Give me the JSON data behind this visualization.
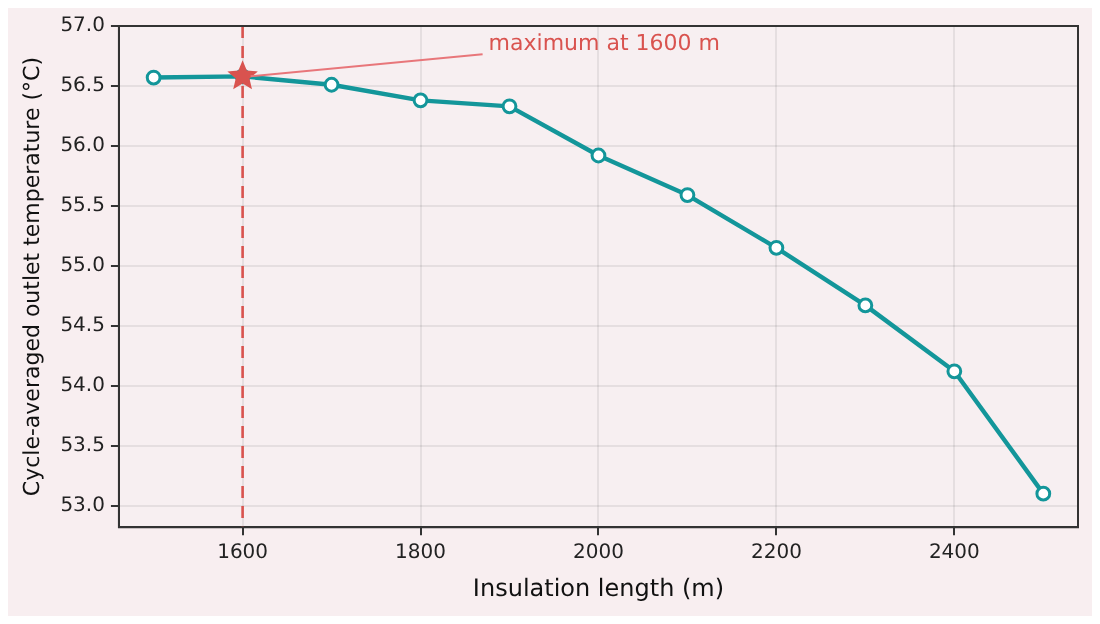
{
  "chart_data": {
    "type": "line",
    "xlabel": "Insulation length (m)",
    "ylabel": "Cycle-averaged outlet temperature (°C)",
    "x": [
      1500,
      1600,
      1700,
      1800,
      1900,
      2000,
      2100,
      2200,
      2300,
      2400,
      2500
    ],
    "series": [
      {
        "color": "#13969a",
        "marker": "circle",
        "values": [
          56.57,
          56.58,
          56.51,
          56.38,
          56.33,
          55.92,
          55.59,
          55.15,
          54.67,
          54.12,
          53.1
        ]
      },
      {
        "type": "scatter",
        "color": "#d9534f",
        "marker": "star",
        "x": [
          1600
        ],
        "values": [
          56.58
        ]
      }
    ],
    "xlim": [
      1461,
      2539
    ],
    "xticks": [
      1600,
      1800,
      2000,
      2200,
      2400
    ],
    "ylim": [
      52.82,
      57.0
    ],
    "yticks": [
      {
        "value": 53,
        "label": "53.0"
      },
      {
        "value": 53.5,
        "label": "53.5"
      },
      {
        "value": 54,
        "label": "54.0"
      },
      {
        "value": 54.5,
        "label": "54.5"
      },
      {
        "value": 55,
        "label": "55.0"
      },
      {
        "value": 55.5,
        "label": "55.5"
      },
      {
        "value": 56,
        "label": "56.0"
      },
      {
        "value": 56.5,
        "label": "56.5"
      },
      {
        "value": 57,
        "label": "57.0"
      }
    ],
    "ref_lines": [
      {
        "axis": "x",
        "value": 1600,
        "color": "#d9534f",
        "line_style": "dashed"
      }
    ],
    "annotations": [
      {
        "text": "maximum at 1600 m",
        "x": 1600,
        "y": 56.58
      }
    ],
    "grid": true,
    "legend": false
  }
}
